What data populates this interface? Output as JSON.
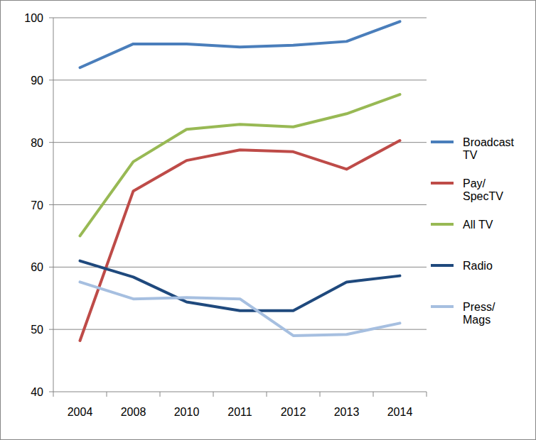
{
  "chart_data": {
    "type": "line",
    "categories": [
      "2004",
      "2008",
      "2010",
      "2011",
      "2012",
      "2013",
      "2014"
    ],
    "series": [
      {
        "name": "Broadcast TV",
        "color": "#4a7ebb",
        "values": [
          92.0,
          95.8,
          95.8,
          95.3,
          95.6,
          96.2,
          99.4
        ]
      },
      {
        "name": "Pay/SpecTV",
        "color": "#be4b48",
        "values": [
          48.2,
          72.2,
          77.1,
          78.8,
          78.5,
          75.7,
          80.3
        ]
      },
      {
        "name": "All TV",
        "color": "#98b954",
        "values": [
          65.0,
          76.9,
          82.1,
          82.9,
          82.5,
          84.6,
          87.7
        ]
      },
      {
        "name": "Radio",
        "color": "#1f497d",
        "values": [
          61.0,
          58.4,
          54.4,
          53.0,
          53.0,
          57.6,
          58.6
        ]
      },
      {
        "name": "Press/Mags",
        "color": "#a6bfe0",
        "values": [
          57.6,
          54.9,
          55.1,
          54.9,
          49.0,
          49.2,
          51.0
        ]
      }
    ],
    "ylim": [
      40,
      100
    ],
    "yticks": [
      40,
      50,
      60,
      70,
      80,
      90,
      100
    ],
    "grid": true,
    "legend": "right"
  }
}
